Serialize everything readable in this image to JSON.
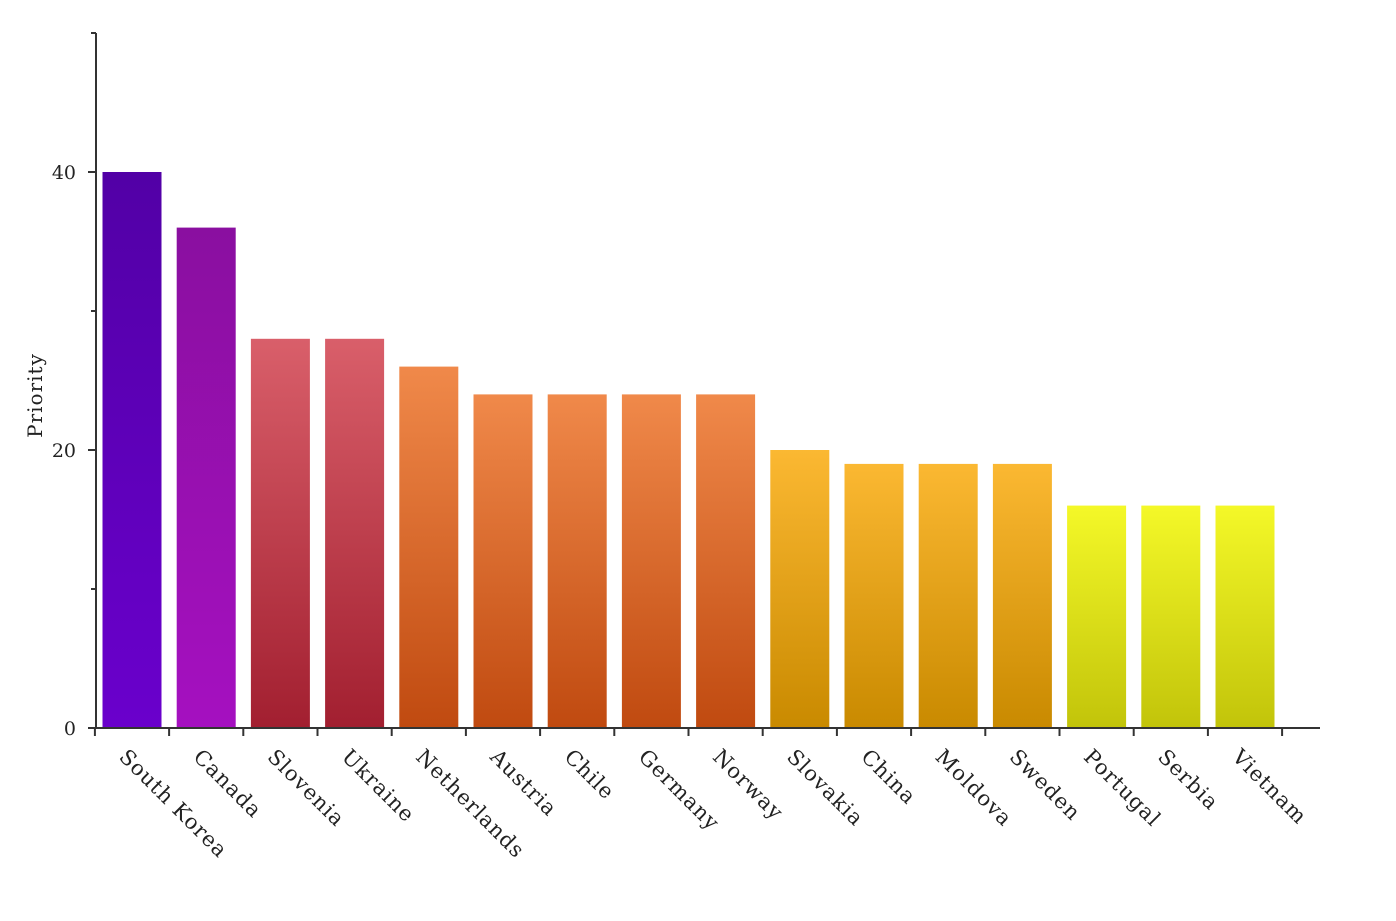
{
  "chart_data": {
    "type": "bar",
    "title": "",
    "xlabel": "",
    "ylabel": "Priority",
    "ylim": [
      0,
      50
    ],
    "yticks": [
      0,
      20,
      40
    ],
    "grid": false,
    "legend": "none",
    "categories": [
      "South Korea",
      "Canada",
      "Slovenia",
      "Ukraine",
      "Netherlands",
      "Austria",
      "Chile",
      "Germany",
      "Norway",
      "Slovakia",
      "China",
      "Moldova",
      "Sweden",
      "Portugal",
      "Serbia",
      "Vietnam"
    ],
    "values": [
      40,
      36,
      28,
      28,
      26,
      24,
      24,
      24,
      24,
      20,
      19,
      19,
      19,
      16,
      16,
      16
    ],
    "colors": [
      {
        "top": "#5200a6",
        "bottom": "#6a00cc"
      },
      {
        "top": "#8a0fa0",
        "bottom": "#a510c0"
      },
      {
        "top": "#d95f6a",
        "bottom": "#a21f30"
      },
      {
        "top": "#d95f6a",
        "bottom": "#a21f30"
      },
      {
        "top": "#f0894a",
        "bottom": "#c04a10"
      },
      {
        "top": "#f0894a",
        "bottom": "#c04a10"
      },
      {
        "top": "#f0894a",
        "bottom": "#c04a10"
      },
      {
        "top": "#f0894a",
        "bottom": "#c04a10"
      },
      {
        "top": "#f0894a",
        "bottom": "#c04a10"
      },
      {
        "top": "#fbb832",
        "bottom": "#c98a00"
      },
      {
        "top": "#fbb832",
        "bottom": "#c98a00"
      },
      {
        "top": "#fbb832",
        "bottom": "#c98a00"
      },
      {
        "top": "#fbb832",
        "bottom": "#c98a00"
      },
      {
        "top": "#f4f828",
        "bottom": "#c2c40a"
      },
      {
        "top": "#f4f828",
        "bottom": "#c2c40a"
      },
      {
        "top": "#f4f828",
        "bottom": "#c2c40a"
      }
    ]
  }
}
